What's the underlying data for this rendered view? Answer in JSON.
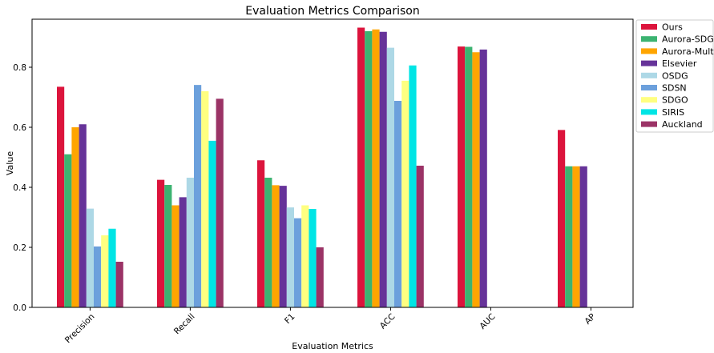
{
  "chart_data": {
    "type": "bar",
    "title": "Evaluation Metrics Comparison",
    "xlabel": "Evaluation Metrics",
    "ylabel": "Value",
    "categories": [
      "Precision",
      "Recall",
      "F1",
      "ACC",
      "AUC",
      "AP"
    ],
    "y_ticks": [
      "0.0",
      "0.2",
      "0.4",
      "0.6",
      "0.8"
    ],
    "ylim": [
      0,
      0.96
    ],
    "grid": false,
    "legend_position": "top-right outside",
    "series": [
      {
        "name": "Ours",
        "color": "#DC143C",
        "values": [
          0.735,
          0.425,
          0.49,
          0.932,
          0.869,
          0.591
        ]
      },
      {
        "name": "Aurora-SDG",
        "color": "#3CB371",
        "values": [
          0.51,
          0.408,
          0.432,
          0.92,
          0.868,
          0.47
        ]
      },
      {
        "name": "Aurora-Multi",
        "color": "#FFA500",
        "values": [
          0.6,
          0.34,
          0.407,
          0.926,
          0.85,
          0.47
        ]
      },
      {
        "name": "Elsevier",
        "color": "#663399",
        "values": [
          0.61,
          0.367,
          0.405,
          0.918,
          0.859,
          0.47
        ]
      },
      {
        "name": "OSDG",
        "color": "#ADD8E6",
        "values": [
          0.329,
          0.432,
          0.333,
          0.865,
          0,
          0
        ]
      },
      {
        "name": "SDSN",
        "color": "#6CA0DC",
        "values": [
          0.203,
          0.741,
          0.297,
          0.688,
          0,
          0
        ]
      },
      {
        "name": "SDGO",
        "color": "#FFFF80",
        "values": [
          0.24,
          0.72,
          0.34,
          0.755,
          0,
          0
        ]
      },
      {
        "name": "SIRIS",
        "color": "#00E5E5",
        "values": [
          0.262,
          0.555,
          0.328,
          0.806,
          0,
          0
        ]
      },
      {
        "name": "Auckland",
        "color": "#9B3366",
        "values": [
          0.152,
          0.695,
          0.2,
          0.472,
          0,
          0
        ]
      }
    ]
  }
}
